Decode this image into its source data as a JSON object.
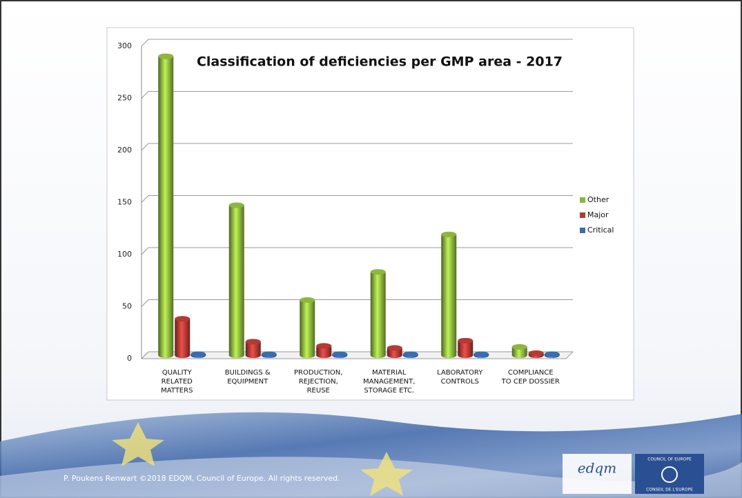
{
  "chart_data": {
    "type": "bar",
    "title": "Classification of deficiencies per GMP area - 2017",
    "categories": [
      "QUALITY\nRELATED\nMATTERS",
      "BUILDINGS &\nEQUIPMENT",
      "PRODUCTION,\nREJECTION,\nREUSE",
      "MATERIAL\nMANAGEMENT,\nSTORAGE ETC.",
      "LABORATORY\nCONTROLS",
      "COMPLIANCE\nTO CEP DOSSIER"
    ],
    "series": [
      {
        "name": "Other",
        "color": "#8db53f",
        "values": [
          287,
          144,
          53,
          80,
          116,
          8
        ]
      },
      {
        "name": "Major",
        "color": "#b33a36",
        "values": [
          35,
          13,
          9,
          7,
          14,
          2
        ]
      },
      {
        "name": "Critical",
        "color": "#3a6db0",
        "values": [
          1,
          1,
          1,
          1,
          1,
          1
        ]
      }
    ],
    "ylim": [
      0,
      300
    ],
    "yticks": [
      0,
      50,
      100,
      150,
      200,
      250,
      300
    ],
    "grid": true,
    "legend": "right"
  },
  "footer": {
    "text": "P. Poukens Renwart ©2018 EDQM, Council of Europe. All rights reserved.",
    "logo_left": "edqm",
    "logo_right_top": "COUNCIL OF EUROPE",
    "logo_right_bottom": "CONSEIL DE L'EUROPE"
  }
}
